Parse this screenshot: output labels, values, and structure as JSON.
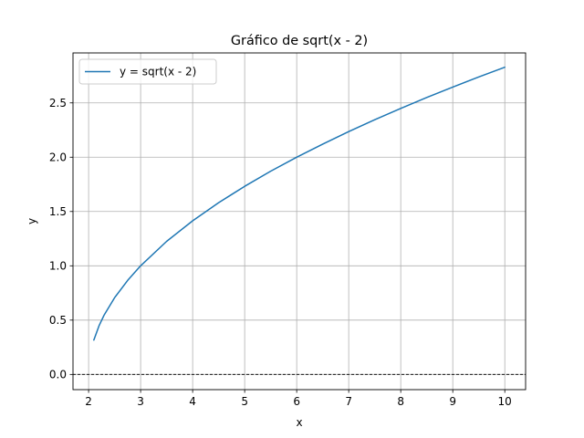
{
  "chart_data": {
    "type": "line",
    "title": "Gráfico de sqrt(x - 2)",
    "xlabel": "x",
    "ylabel": "y",
    "xlim": [
      1.7,
      10.4
    ],
    "ylim": [
      -0.14,
      2.96
    ],
    "xticks": [
      2,
      3,
      4,
      5,
      6,
      7,
      8,
      9,
      10
    ],
    "xtick_labels": [
      "2",
      "3",
      "4",
      "5",
      "6",
      "7",
      "8",
      "9",
      "10"
    ],
    "yticks": [
      0.0,
      0.5,
      1.0,
      1.5,
      2.0,
      2.5
    ],
    "ytick_labels": [
      "0.0",
      "0.5",
      "1.0",
      "1.5",
      "2.0",
      "2.5"
    ],
    "grid": true,
    "legend_position": "upper-left",
    "reference_line": {
      "y": 0,
      "style": "dashed",
      "color": "#000000"
    },
    "series": [
      {
        "name": "y = sqrt(x - 2)",
        "color": "#1f77b4",
        "x": [
          2.1,
          2.2,
          2.3,
          2.5,
          2.75,
          3.0,
          3.5,
          4.0,
          4.5,
          5.0,
          5.5,
          6.0,
          6.5,
          7.0,
          7.5,
          8.0,
          8.5,
          9.0,
          9.5,
          10.0
        ],
        "y": [
          0.316,
          0.447,
          0.548,
          0.707,
          0.866,
          1.0,
          1.225,
          1.414,
          1.581,
          1.732,
          1.871,
          2.0,
          2.121,
          2.236,
          2.345,
          2.449,
          2.55,
          2.646,
          2.739,
          2.828
        ]
      }
    ]
  }
}
